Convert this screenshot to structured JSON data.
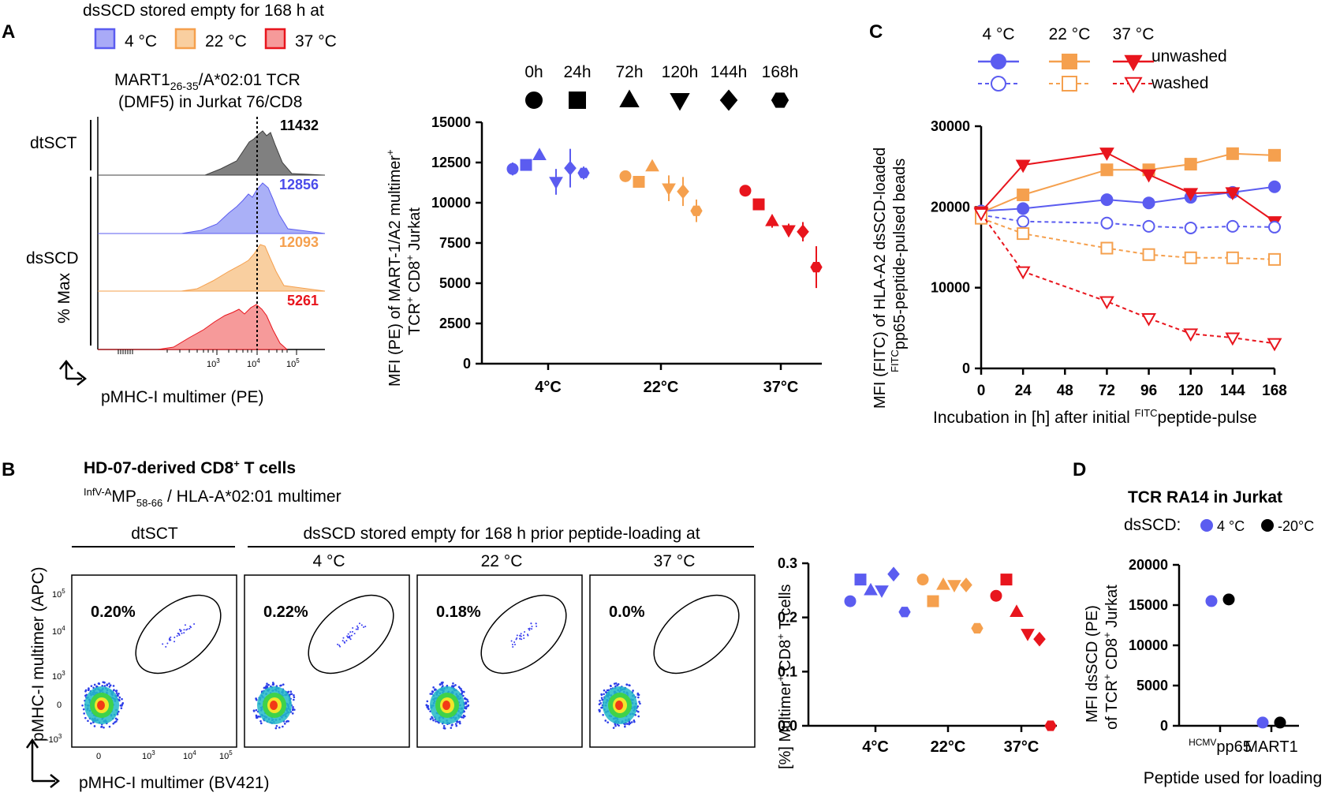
{
  "panels": {
    "A": "A",
    "B": "B",
    "C": "C",
    "D": "D"
  },
  "colors": {
    "c4": "#5b5cf0",
    "c22": "#f5a04e",
    "c37": "#e8151d",
    "black": "#000000",
    "grey": "#808080"
  },
  "panelA": {
    "header": "dsSCD stored empty for 168 h at",
    "legend": [
      "4 °C",
      "22 °C",
      "37 °C"
    ],
    "hist_title_main": "MART1",
    "hist_title_sub": "26-35",
    "hist_title_rest": "/A*02:01 TCR",
    "hist_title2": "(DMF5) in Jurkat 76/CD8",
    "row_label_dtsct": "dtSCT",
    "row_label_dsscd": "dsSCD",
    "ylabel": "% Max",
    "xlabel": "pMHC-I multimer (PE)",
    "mfi": [
      "11432",
      "12856",
      "12093",
      "5261"
    ],
    "xtick_base": [
      "10",
      "10",
      "10",
      "10"
    ],
    "xtick_exp": [
      "3",
      "4",
      "5"
    ]
  },
  "panelB": {
    "title": "HD-07-derived CD8",
    "title_sup": "+",
    "title_rest": " T cells",
    "subtitle_sup": "InfV-A",
    "subtitle_main": "MP",
    "subtitle_sub": "58-66",
    "subtitle_rest": " / HLA-A*02:01 multimer",
    "group_dtsct": "dtSCT",
    "group_dsscd": "dsSCD stored empty for 168 h prior peptide-loading at",
    "cols": [
      "4 °C",
      "22 °C",
      "37 °C"
    ],
    "percents": [
      "0.20%",
      "0.22%",
      "0.18%",
      "0.0%"
    ],
    "ylabel": "pMHC-I multimer (APC)",
    "xlabel": "pMHC-I multimer (BV421)",
    "ytick_exp": [
      "5",
      "4",
      "3"
    ],
    "ytick_zero": "0",
    "ytick_neg": "-10",
    "xtick_zero": "0",
    "xtick_exp": [
      "3",
      "4",
      "5"
    ]
  },
  "timepoints": [
    "0h",
    "24h",
    "72h",
    "120h",
    "144h",
    "168h"
  ],
  "chart_data": [
    {
      "id": "A-right",
      "type": "scatter",
      "title": "",
      "ylabel": "MFI (PE) of MART-1/A2 multimer⁺ TCR⁺ CD8⁺ Jurkat",
      "ylabel1": "MFI (PE) of MART-1/A2 multimer",
      "ylabel1_sup": "+",
      "ylabel2": "TCR",
      "ylabel2_sup": "+",
      "ylabel2_mid": " CD8",
      "ylabel2_sup2": "+",
      "ylabel2_end": " Jurkat",
      "categories": [
        "4°C",
        "22°C",
        "37°C"
      ],
      "ylim": [
        0,
        15000
      ],
      "yticks": [
        "0",
        "2500",
        "5000",
        "7500",
        "10000",
        "12500",
        "15000"
      ],
      "series": [
        {
          "name": "4°C",
          "values": [
            12100,
            12350,
            12950,
            11300,
            12150,
            11850
          ],
          "errors": [
            400,
            300,
            150,
            800,
            1200,
            400
          ]
        },
        {
          "name": "22°C",
          "values": [
            11650,
            11300,
            12250,
            10900,
            10700,
            9500
          ],
          "errors": [
            300,
            350,
            0,
            800,
            900,
            700
          ]
        },
        {
          "name": "37°C",
          "values": [
            10750,
            9900,
            8850,
            8300,
            8200,
            6000
          ],
          "errors": [
            0,
            0,
            400,
            400,
            600,
            1300
          ]
        }
      ]
    },
    {
      "id": "C",
      "type": "line",
      "legend_header": [
        "4 °C",
        "22 °C",
        "37 °C"
      ],
      "legend_rows": [
        "unwashed",
        "washed"
      ],
      "ylabel_main": "MFI (FITC) of HLA-A2 dsSCD-loaded",
      "ylabel_sup": "FITC",
      "ylabel_rest": "pp65-peptide-pulsed beads",
      "xlabel_main": "Incubation in [h] after initial ",
      "xlabel_sup": "FITC",
      "xlabel_rest": "peptide-pulse",
      "x": [
        0,
        24,
        72,
        96,
        120,
        144,
        168
      ],
      "xticks": [
        "0",
        "24",
        "48",
        "72",
        "96",
        "120",
        "144",
        "168"
      ],
      "ylim": [
        0,
        30000
      ],
      "yticks": [
        "0",
        "10000",
        "20000",
        "30000"
      ],
      "series": [
        {
          "name": "4 °C unwashed",
          "values": [
            19500,
            19800,
            20900,
            20500,
            21200,
            21800,
            22500
          ]
        },
        {
          "name": "22 °C unwashed",
          "values": [
            19300,
            21500,
            24600,
            24600,
            25300,
            26600,
            26400
          ]
        },
        {
          "name": "37 °C unwashed",
          "values": [
            19400,
            25200,
            26700,
            24000,
            21700,
            21800,
            18200
          ]
        },
        {
          "name": "4 °C washed",
          "values": [
            19000,
            18200,
            18000,
            17600,
            17400,
            17600,
            17500
          ]
        },
        {
          "name": "22 °C washed",
          "values": [
            18600,
            16700,
            14900,
            14100,
            13700,
            13700,
            13500
          ]
        },
        {
          "name": "37 °C washed",
          "values": [
            19200,
            12000,
            8300,
            6200,
            4300,
            3800,
            3100
          ]
        }
      ]
    },
    {
      "id": "B-right",
      "type": "scatter",
      "ylabel_pre": "[%] Multimer",
      "ylabel_sup": "+",
      "ylabel_mid": " CD8",
      "ylabel_sup2": "+",
      "ylabel_end": " T cells",
      "categories": [
        "4°C",
        "22°C",
        "37°C"
      ],
      "ylim": [
        0,
        0.3
      ],
      "yticks": [
        "0.0",
        "0.1",
        "0.2",
        "0.3"
      ],
      "series": [
        {
          "name": "4°C",
          "values": [
            0.23,
            0.27,
            0.25,
            0.25,
            0.28,
            0.21
          ]
        },
        {
          "name": "22°C",
          "values": [
            0.27,
            0.23,
            0.26,
            0.26,
            0.26,
            0.18
          ]
        },
        {
          "name": "37°C",
          "values": [
            0.24,
            0.27,
            0.21,
            0.17,
            0.16,
            0.0
          ]
        }
      ]
    },
    {
      "id": "D",
      "type": "scatter",
      "title": "TCR RA14 in Jurkat",
      "legend_prefix": "dsSCD:",
      "legend": [
        "4 °C",
        "-20°C"
      ],
      "ylabel1": "MFI dsSCD (PE)",
      "ylabel2_pre": "of TCR",
      "ylabel2_sup": "+",
      "ylabel2_mid": " CD8",
      "ylabel2_sup2": "+",
      "ylabel2_end": " Jurkat",
      "categories_sup": [
        "HCMV",
        ""
      ],
      "categories": [
        "pp65",
        "MART1"
      ],
      "xlabel": "Peptide used for loading",
      "ylim": [
        0,
        20000
      ],
      "yticks": [
        "0",
        "5000",
        "10000",
        "15000",
        "20000"
      ],
      "series": [
        {
          "name": "4 °C",
          "values": [
            15500,
            400
          ]
        },
        {
          "name": "-20°C",
          "values": [
            15700,
            400
          ]
        }
      ]
    }
  ]
}
